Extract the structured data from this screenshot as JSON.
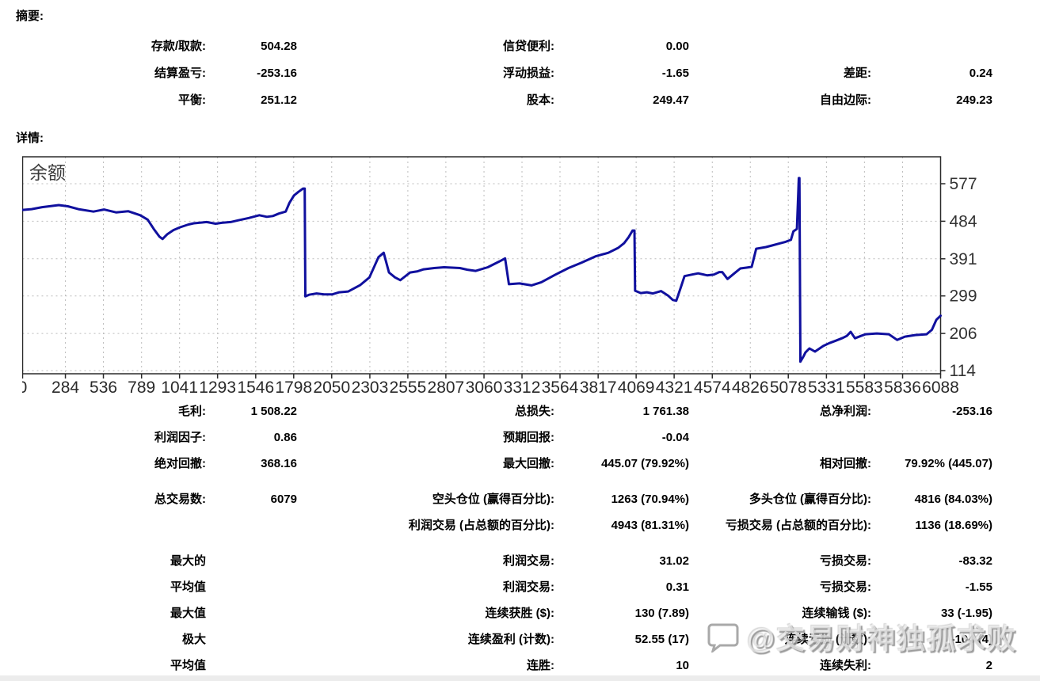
{
  "summary": {
    "heading": "摘要:",
    "rows": [
      {
        "cells": [
          [
            "存款/取款:",
            "504.28"
          ],
          [
            "信贷便利:",
            "0.00"
          ],
          [
            "",
            ""
          ]
        ]
      },
      {
        "cells": [
          [
            "结算盈亏:",
            "-253.16"
          ],
          [
            "浮动损益:",
            "-1.65"
          ],
          [
            "差距:",
            "0.24"
          ]
        ]
      },
      {
        "cells": [
          [
            "平衡:",
            "251.12"
          ],
          [
            "股本:",
            "249.47"
          ],
          [
            "自由边际:",
            "249.23"
          ]
        ]
      }
    ]
  },
  "details": {
    "heading": "详情:"
  },
  "chart_data": {
    "type": "line",
    "title": "余额",
    "xlabel": "",
    "ylabel": "",
    "xlim": [
      0,
      6088
    ],
    "ylim": [
      114,
      577
    ],
    "x_ticks": [
      0,
      284,
      536,
      789,
      1041,
      1293,
      1546,
      1798,
      2050,
      2303,
      2555,
      2807,
      3060,
      3312,
      3564,
      3817,
      4069,
      4321,
      4574,
      4826,
      5078,
      5331,
      5583,
      5836,
      6088
    ],
    "y_ticks": [
      114,
      206,
      299,
      391,
      484,
      577
    ],
    "grid": true,
    "line_color": "#10109e",
    "grid_color": "#bcbcbc",
    "axis_color": "#2a2a2a",
    "legend_position": "top-left-inside",
    "series": [
      {
        "name": "余额",
        "points": [
          [
            0,
            512
          ],
          [
            60,
            514
          ],
          [
            130,
            519
          ],
          [
            240,
            524
          ],
          [
            300,
            521
          ],
          [
            370,
            514
          ],
          [
            470,
            508
          ],
          [
            540,
            513
          ],
          [
            620,
            506
          ],
          [
            700,
            509
          ],
          [
            780,
            499
          ],
          [
            830,
            488
          ],
          [
            870,
            465
          ],
          [
            907,
            446
          ],
          [
            928,
            440
          ],
          [
            960,
            452
          ],
          [
            1000,
            462
          ],
          [
            1045,
            469
          ],
          [
            1100,
            476
          ],
          [
            1135,
            479
          ],
          [
            1220,
            482
          ],
          [
            1280,
            478
          ],
          [
            1320,
            480
          ],
          [
            1380,
            482
          ],
          [
            1425,
            486
          ],
          [
            1500,
            492
          ],
          [
            1570,
            499
          ],
          [
            1620,
            495
          ],
          [
            1660,
            497
          ],
          [
            1700,
            503
          ],
          [
            1745,
            508
          ],
          [
            1770,
            530
          ],
          [
            1800,
            548
          ],
          [
            1830,
            557
          ],
          [
            1860,
            565
          ],
          [
            1871,
            565
          ],
          [
            1875,
            298
          ],
          [
            1900,
            302
          ],
          [
            1950,
            305
          ],
          [
            2000,
            303
          ],
          [
            2055,
            303
          ],
          [
            2100,
            308
          ],
          [
            2160,
            310
          ],
          [
            2240,
            326
          ],
          [
            2300,
            345
          ],
          [
            2360,
            395
          ],
          [
            2395,
            406
          ],
          [
            2430,
            357
          ],
          [
            2470,
            345
          ],
          [
            2505,
            338
          ],
          [
            2570,
            357
          ],
          [
            2620,
            360
          ],
          [
            2660,
            365
          ],
          [
            2730,
            368
          ],
          [
            2795,
            370
          ],
          [
            2850,
            369
          ],
          [
            2900,
            368
          ],
          [
            2950,
            364
          ],
          [
            3005,
            361
          ],
          [
            3085,
            370
          ],
          [
            3165,
            385
          ],
          [
            3200,
            392
          ],
          [
            3225,
            328
          ],
          [
            3295,
            330
          ],
          [
            3375,
            325
          ],
          [
            3440,
            333
          ],
          [
            3530,
            351
          ],
          [
            3620,
            368
          ],
          [
            3705,
            381
          ],
          [
            3800,
            397
          ],
          [
            3885,
            406
          ],
          [
            3950,
            418
          ],
          [
            3990,
            430
          ],
          [
            4020,
            445
          ],
          [
            4045,
            461
          ],
          [
            4058,
            461
          ],
          [
            4062,
            312
          ],
          [
            4100,
            306
          ],
          [
            4140,
            308
          ],
          [
            4180,
            305
          ],
          [
            4235,
            311
          ],
          [
            4280,
            300
          ],
          [
            4312,
            289
          ],
          [
            4335,
            287
          ],
          [
            4365,
            320
          ],
          [
            4390,
            348
          ],
          [
            4440,
            352
          ],
          [
            4480,
            355
          ],
          [
            4540,
            350
          ],
          [
            4585,
            352
          ],
          [
            4620,
            358
          ],
          [
            4640,
            358
          ],
          [
            4675,
            341
          ],
          [
            4720,
            355
          ],
          [
            4760,
            367
          ],
          [
            4800,
            369
          ],
          [
            4835,
            371
          ],
          [
            4865,
            416
          ],
          [
            4900,
            418
          ],
          [
            4930,
            420
          ],
          [
            4970,
            424
          ],
          [
            5010,
            428
          ],
          [
            5060,
            433
          ],
          [
            5095,
            438
          ],
          [
            5112,
            459
          ],
          [
            5135,
            465
          ],
          [
            5148,
            591
          ],
          [
            5152,
            591
          ],
          [
            5158,
            136
          ],
          [
            5180,
            150
          ],
          [
            5192,
            159
          ],
          [
            5218,
            169
          ],
          [
            5255,
            161
          ],
          [
            5310,
            175
          ],
          [
            5350,
            182
          ],
          [
            5392,
            188
          ],
          [
            5440,
            195
          ],
          [
            5466,
            200
          ],
          [
            5492,
            210
          ],
          [
            5520,
            194
          ],
          [
            5560,
            200
          ],
          [
            5590,
            204
          ],
          [
            5665,
            206
          ],
          [
            5745,
            204
          ],
          [
            5800,
            190
          ],
          [
            5850,
            198
          ],
          [
            5920,
            202
          ],
          [
            5995,
            204
          ],
          [
            6030,
            215
          ],
          [
            6060,
            240
          ],
          [
            6088,
            250
          ]
        ]
      }
    ]
  },
  "stats": {
    "rows": [
      {
        "cells": [
          [
            "毛利:",
            "1 508.22"
          ],
          [
            "总损失:",
            "1 761.38"
          ],
          [
            "总净利润:",
            "-253.16"
          ]
        ]
      },
      {
        "cells": [
          [
            "利润因子:",
            "0.86"
          ],
          [
            "预期回报:",
            "-0.04"
          ],
          [
            "",
            ""
          ]
        ]
      },
      {
        "cells": [
          [
            "绝对回撤:",
            "368.16"
          ],
          [
            "最大回撤:",
            "445.07 (79.92%)"
          ],
          [
            "相对回撤:",
            "79.92% (445.07)"
          ]
        ]
      },
      {
        "group_break": true,
        "cells": [
          [
            "总交易数:",
            "6079"
          ],
          [
            "空头仓位 (赢得百分比):",
            "1263 (70.94%)"
          ],
          [
            "多头仓位 (赢得百分比):",
            "4816 (84.03%)"
          ]
        ]
      },
      {
        "cells": [
          [
            "",
            ""
          ],
          [
            "利润交易 (占总额的百分比):",
            "4943 (81.31%)"
          ],
          [
            "亏损交易 (占总额的百分比):",
            "1136 (18.69%)"
          ]
        ]
      },
      {
        "group_break": true,
        "cells": [
          [
            "最大的",
            ""
          ],
          [
            "利润交易:",
            "31.02"
          ],
          [
            "亏损交易:",
            "-83.32"
          ]
        ]
      },
      {
        "cells": [
          [
            "平均值",
            ""
          ],
          [
            "利润交易:",
            "0.31"
          ],
          [
            "亏损交易:",
            "-1.55"
          ]
        ]
      },
      {
        "cells": [
          [
            "最大值",
            ""
          ],
          [
            "连续获胜 ($):",
            "130 (7.89)"
          ],
          [
            "连续输钱 ($):",
            "33 (-1.95)"
          ]
        ]
      },
      {
        "cells": [
          [
            "极大",
            ""
          ],
          [
            "连续盈利 (计数):",
            "52.55 (17)"
          ],
          [
            "连续亏损 (计数):",
            "-104 (4)"
          ]
        ]
      },
      {
        "cells": [
          [
            "平均值",
            ""
          ],
          [
            "连胜:",
            "10"
          ],
          [
            "连续失利:",
            "2"
          ]
        ]
      }
    ]
  },
  "watermark": {
    "text": "@交易财神独孤求败",
    "icon": "chat-bubble-icon"
  }
}
